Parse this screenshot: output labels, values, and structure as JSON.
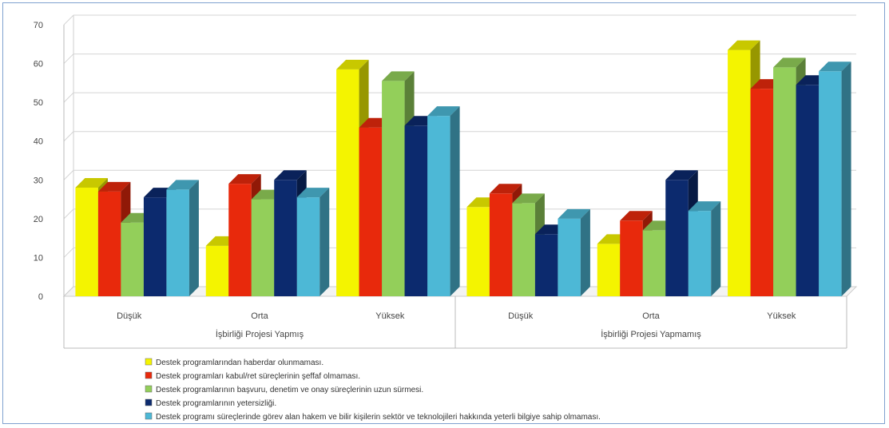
{
  "chart_data": {
    "type": "bar",
    "ylim": [
      0,
      70
    ],
    "yticks": [
      0,
      10,
      20,
      30,
      40,
      50,
      60,
      70
    ],
    "groups": [
      {
        "label": "İşbirliği Projesi Yapmış",
        "categories": [
          "Düşük",
          "Orta",
          "Yüksek"
        ]
      },
      {
        "label": "İşbirliği Projesi Yapmamış",
        "categories": [
          "Düşük",
          "Orta",
          "Yüksek"
        ]
      }
    ],
    "categories": [
      "Düşük",
      "Orta",
      "Yüksek",
      "Düşük",
      "Orta",
      "Yüksek"
    ],
    "series": [
      {
        "name": "Destek programlarından haberdar olunmaması.",
        "color": "#f4f400",
        "values": [
          28,
          13,
          58.5,
          23,
          13.5,
          63.5
        ]
      },
      {
        "name": "Destek programları kabul/ret süreçlerinin şeffaf olmaması.",
        "color": "#e8290c",
        "values": [
          27,
          29,
          43.5,
          26.5,
          19.5,
          53.5
        ]
      },
      {
        "name": "Destek programlarının başvuru, denetim ve onay süreçlerinin uzun sürmesi.",
        "color": "#93cf5a",
        "values": [
          19,
          25,
          55.5,
          24,
          17,
          59
        ]
      },
      {
        "name": "Destek programlarının yetersizliği.",
        "color": "#0c2a6e",
        "values": [
          25.5,
          30,
          44,
          16,
          30,
          54.5
        ]
      },
      {
        "name": "Destek programı süreçlerinde görev alan hakem ve bilir kişilerin sektör ve teknolojileri hakkında yeterli bilgiye sahip olmaması.",
        "color": "#4db8d6",
        "values": [
          27.5,
          25.5,
          46.5,
          20,
          22,
          58
        ]
      }
    ],
    "grid": true,
    "legend_position": "bottom-center"
  }
}
